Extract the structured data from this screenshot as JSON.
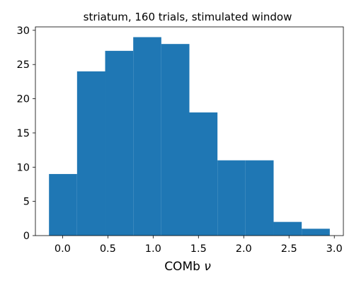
{
  "chart_data": {
    "type": "bar",
    "subtype": "histogram",
    "title": "striatum, 160 trials, stimulated window",
    "xlabel": "COMb",
    "xlabel_symbol": "ν",
    "ylabel": "",
    "bar_color": "#1f77b4",
    "bins": [
      {
        "x0": -0.15,
        "x1": 0.16,
        "count": 9
      },
      {
        "x0": 0.16,
        "x1": 0.47,
        "count": 24
      },
      {
        "x0": 0.47,
        "x1": 0.78,
        "count": 27
      },
      {
        "x0": 0.78,
        "x1": 1.09,
        "count": 29
      },
      {
        "x0": 1.09,
        "x1": 1.4,
        "count": 28
      },
      {
        "x0": 1.4,
        "x1": 1.71,
        "count": 18
      },
      {
        "x0": 1.71,
        "x1": 2.02,
        "count": 11
      },
      {
        "x0": 2.02,
        "x1": 2.33,
        "count": 11
      },
      {
        "x0": 2.33,
        "x1": 2.64,
        "count": 2
      },
      {
        "x0": 2.64,
        "x1": 2.95,
        "count": 1
      }
    ],
    "xlim": [
      -0.3,
      3.1
    ],
    "ylim": [
      0,
      30.5
    ],
    "xticks": [
      0.0,
      0.5,
      1.0,
      1.5,
      2.0,
      2.5,
      3.0
    ],
    "xtick_labels": [
      "0.0",
      "0.5",
      "1.0",
      "1.5",
      "2.0",
      "2.5",
      "3.0"
    ],
    "yticks": [
      0,
      5,
      10,
      15,
      20,
      25,
      30
    ],
    "ytick_labels": [
      "0",
      "5",
      "10",
      "15",
      "20",
      "25",
      "30"
    ],
    "grid": false,
    "legend": false
  }
}
